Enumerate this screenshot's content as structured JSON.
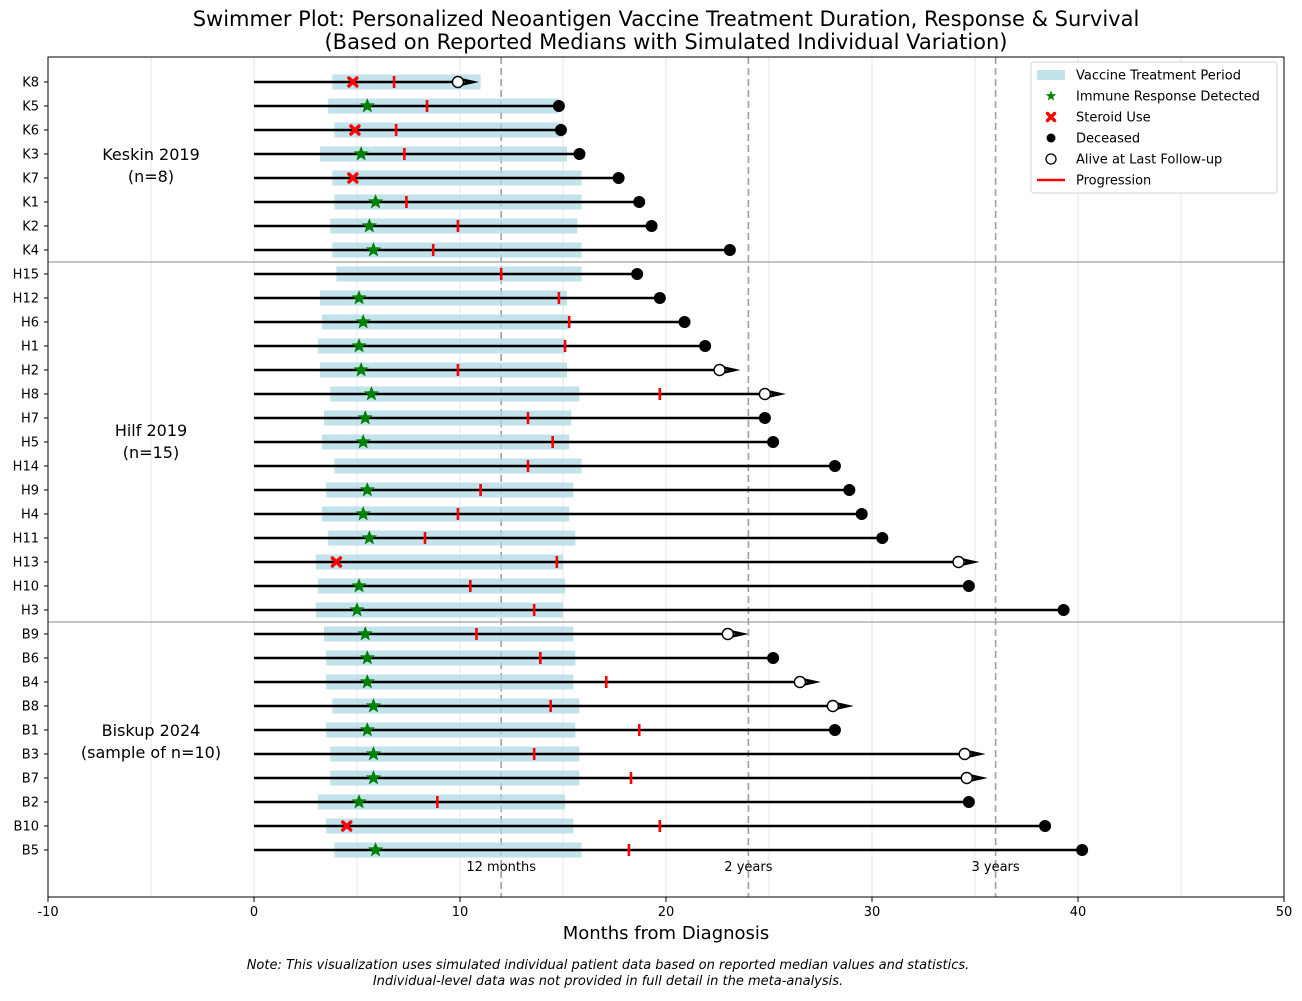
{
  "chart_data": {
    "type": "swimmer",
    "title_line1": "Swimmer Plot: Personalized Neoantigen Vaccine Treatment Duration, Response & Survival",
    "title_line2": "(Based on Reported Medians with Simulated Individual Variation)",
    "xlabel": "Months from Diagnosis",
    "xlim": [
      -10,
      50
    ],
    "xticks": [
      -10,
      0,
      10,
      20,
      30,
      40,
      50
    ],
    "reference_lines": [
      {
        "x": 12,
        "label": "12 months"
      },
      {
        "x": 24,
        "label": "2 years"
      },
      {
        "x": 36,
        "label": "3 years"
      }
    ],
    "groups": [
      {
        "label_line1": "Keskin 2019",
        "label_line2": "(n=8)",
        "first": 0,
        "last": 7
      },
      {
        "label_line1": "Hilf 2019",
        "label_line2": "(n=15)",
        "first": 8,
        "last": 22
      },
      {
        "label_line1": "Biskup 2024",
        "label_line2": "(sample of n=10)",
        "first": 23,
        "last": 32
      }
    ],
    "legend": [
      {
        "key": "vaccine",
        "label": "Vaccine Treatment Period"
      },
      {
        "key": "immune",
        "label": "Immune Response Detected"
      },
      {
        "key": "steroid",
        "label": "Steroid Use"
      },
      {
        "key": "deceased",
        "label": "Deceased"
      },
      {
        "key": "alive",
        "label": "Alive at Last Follow-up"
      },
      {
        "key": "progression",
        "label": "Progression"
      }
    ],
    "colors": {
      "vaccine": "#add8e6",
      "immune": "#008000",
      "steroid": "#ff0000",
      "progression": "#ff0000",
      "lane": "#000000",
      "reference": "#a0a0a0",
      "grid": "#e6e6e6"
    },
    "patients": [
      {
        "id": "K8",
        "end": 9.9,
        "status": "alive",
        "vac": [
          3.8,
          11.0
        ],
        "immune": null,
        "steroid": 4.8,
        "prog": 6.8
      },
      {
        "id": "K5",
        "end": 14.8,
        "status": "deceased",
        "vac": [
          3.6,
          14.8
        ],
        "immune": 5.5,
        "steroid": null,
        "prog": 8.4
      },
      {
        "id": "K6",
        "end": 14.9,
        "status": "deceased",
        "vac": [
          3.9,
          15.0
        ],
        "immune": null,
        "steroid": 4.9,
        "prog": 6.9
      },
      {
        "id": "K3",
        "end": 15.8,
        "status": "deceased",
        "vac": [
          3.2,
          15.2
        ],
        "immune": 5.2,
        "steroid": null,
        "prog": 7.3
      },
      {
        "id": "K7",
        "end": 17.7,
        "status": "deceased",
        "vac": [
          3.8,
          15.9
        ],
        "immune": null,
        "steroid": 4.8,
        "prog": null
      },
      {
        "id": "K1",
        "end": 18.7,
        "status": "deceased",
        "vac": [
          3.9,
          15.9
        ],
        "immune": 5.9,
        "steroid": null,
        "prog": 7.4
      },
      {
        "id": "K2",
        "end": 19.3,
        "status": "deceased",
        "vac": [
          3.7,
          15.7
        ],
        "immune": 5.6,
        "steroid": null,
        "prog": 9.9
      },
      {
        "id": "K4",
        "end": 23.1,
        "status": "deceased",
        "vac": [
          3.8,
          15.9
        ],
        "immune": 5.8,
        "steroid": null,
        "prog": 8.7
      },
      {
        "id": "H15",
        "end": 18.6,
        "status": "deceased",
        "vac": [
          4.0,
          15.9
        ],
        "immune": null,
        "steroid": null,
        "prog": 12.0
      },
      {
        "id": "H12",
        "end": 19.7,
        "status": "deceased",
        "vac": [
          3.2,
          15.2
        ],
        "immune": 5.1,
        "steroid": null,
        "prog": 14.8
      },
      {
        "id": "H6",
        "end": 20.9,
        "status": "deceased",
        "vac": [
          3.3,
          15.3
        ],
        "immune": 5.3,
        "steroid": null,
        "prog": 15.3
      },
      {
        "id": "H1",
        "end": 21.9,
        "status": "deceased",
        "vac": [
          3.1,
          15.1
        ],
        "immune": 5.1,
        "steroid": null,
        "prog": 15.1
      },
      {
        "id": "H2",
        "end": 22.6,
        "status": "alive",
        "vac": [
          3.2,
          15.2
        ],
        "immune": 5.2,
        "steroid": null,
        "prog": 9.9
      },
      {
        "id": "H8",
        "end": 24.8,
        "status": "alive",
        "vac": [
          3.7,
          15.8
        ],
        "immune": 5.7,
        "steroid": null,
        "prog": 19.7
      },
      {
        "id": "H7",
        "end": 24.8,
        "status": "deceased",
        "vac": [
          3.4,
          15.4
        ],
        "immune": 5.4,
        "steroid": null,
        "prog": 13.3
      },
      {
        "id": "H5",
        "end": 25.2,
        "status": "deceased",
        "vac": [
          3.3,
          15.3
        ],
        "immune": 5.3,
        "steroid": null,
        "prog": 14.5
      },
      {
        "id": "H14",
        "end": 28.2,
        "status": "deceased",
        "vac": [
          3.9,
          15.9
        ],
        "immune": null,
        "steroid": null,
        "prog": 13.3
      },
      {
        "id": "H9",
        "end": 28.9,
        "status": "deceased",
        "vac": [
          3.5,
          15.5
        ],
        "immune": 5.5,
        "steroid": null,
        "prog": 11.0
      },
      {
        "id": "H4",
        "end": 29.5,
        "status": "deceased",
        "vac": [
          3.3,
          15.3
        ],
        "immune": 5.3,
        "steroid": null,
        "prog": 9.9
      },
      {
        "id": "H11",
        "end": 30.5,
        "status": "deceased",
        "vac": [
          3.6,
          15.6
        ],
        "immune": 5.6,
        "steroid": null,
        "prog": 8.3
      },
      {
        "id": "H13",
        "end": 34.2,
        "status": "alive",
        "vac": [
          3.0,
          15.0
        ],
        "immune": null,
        "steroid": 4.0,
        "prog": 14.7
      },
      {
        "id": "H10",
        "end": 34.7,
        "status": "deceased",
        "vac": [
          3.1,
          15.1
        ],
        "immune": 5.1,
        "steroid": null,
        "prog": 10.5
      },
      {
        "id": "H3",
        "end": 39.3,
        "status": "deceased",
        "vac": [
          3.0,
          15.0
        ],
        "immune": 5.0,
        "steroid": null,
        "prog": 13.6
      },
      {
        "id": "B9",
        "end": 23.0,
        "status": "alive",
        "vac": [
          3.4,
          15.5
        ],
        "immune": 5.4,
        "steroid": null,
        "prog": 10.8
      },
      {
        "id": "B6",
        "end": 25.2,
        "status": "deceased",
        "vac": [
          3.5,
          15.6
        ],
        "immune": 5.5,
        "steroid": null,
        "prog": 13.9
      },
      {
        "id": "B4",
        "end": 26.5,
        "status": "alive",
        "vac": [
          3.5,
          15.5
        ],
        "immune": 5.5,
        "steroid": null,
        "prog": 17.1
      },
      {
        "id": "B8",
        "end": 28.1,
        "status": "alive",
        "vac": [
          3.8,
          15.8
        ],
        "immune": 5.8,
        "steroid": null,
        "prog": 14.4
      },
      {
        "id": "B1",
        "end": 28.2,
        "status": "deceased",
        "vac": [
          3.5,
          15.6
        ],
        "immune": 5.5,
        "steroid": null,
        "prog": 18.7
      },
      {
        "id": "B3",
        "end": 34.5,
        "status": "alive",
        "vac": [
          3.7,
          15.8
        ],
        "immune": 5.8,
        "steroid": null,
        "prog": 13.6
      },
      {
        "id": "B7",
        "end": 34.6,
        "status": "alive",
        "vac": [
          3.7,
          15.8
        ],
        "immune": 5.8,
        "steroid": null,
        "prog": 18.3
      },
      {
        "id": "B2",
        "end": 34.7,
        "status": "deceased",
        "vac": [
          3.1,
          15.1
        ],
        "immune": 5.1,
        "steroid": null,
        "prog": 8.9
      },
      {
        "id": "B10",
        "end": 38.4,
        "status": "deceased",
        "vac": [
          3.5,
          15.5
        ],
        "immune": null,
        "steroid": 4.5,
        "prog": 19.7
      },
      {
        "id": "B5",
        "end": 40.2,
        "status": "deceased",
        "vac": [
          3.9,
          15.9
        ],
        "immune": 5.9,
        "steroid": null,
        "prog": 18.2
      }
    ],
    "note_line1": "Note: This visualization uses simulated individual patient data based on reported median values and statistics.",
    "note_line2": "Individual-level data was not provided in full detail in the meta-analysis."
  }
}
